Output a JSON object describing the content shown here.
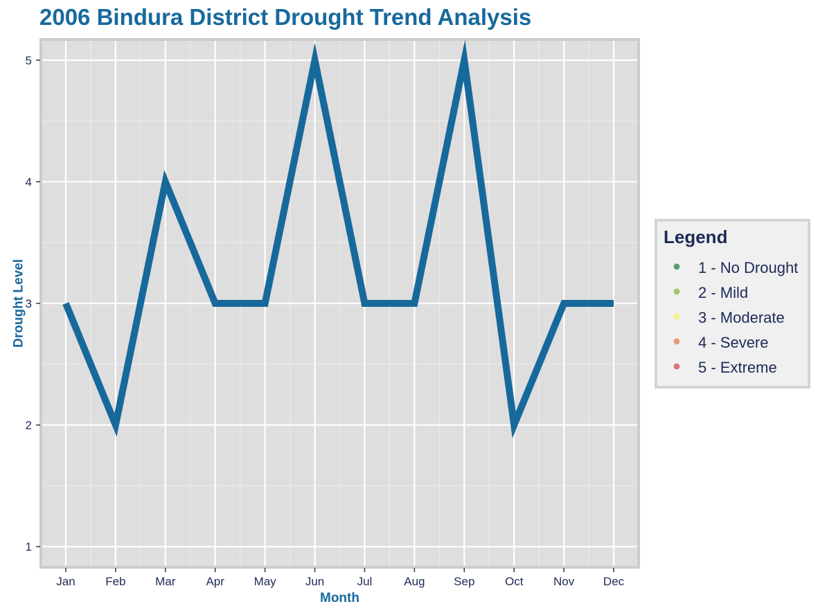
{
  "colors": {
    "title": "#17699c",
    "axis_title": "#17699c",
    "tick_label": "#1d2a57",
    "line": "#17699c",
    "panel_bg": "#dedede",
    "panel_border": "#cccccc",
    "grid_major": "#ffffff",
    "grid_minor": "#ececec",
    "legend_bg": "#f0f0f0",
    "legend_border": "#d4d4d4",
    "legend_title": "#1d2a57",
    "legend_label": "#1d2a57"
  },
  "chart_data": {
    "type": "line",
    "title": "2006 Bindura District Drought Trend Analysis",
    "xlabel": "Month",
    "ylabel": "Drought Level",
    "categories": [
      "Jan",
      "Feb",
      "Mar",
      "Apr",
      "May",
      "Jun",
      "Jul",
      "Aug",
      "Sep",
      "Oct",
      "Nov",
      "Dec"
    ],
    "series": [
      {
        "values": [
          3,
          2,
          4,
          3,
          3,
          5,
          3,
          3,
          5,
          2,
          3,
          3
        ]
      }
    ],
    "ylim": [
      0.83,
      5.17
    ],
    "yticks": [
      1,
      2,
      3,
      4,
      5
    ],
    "grid": true,
    "legend": {
      "title": "Legend",
      "placement": "right",
      "items": [
        {
          "label": "1 - No Drought",
          "color": "#5a9a6e"
        },
        {
          "label": "2 - Mild",
          "color": "#a3c46c"
        },
        {
          "label": "3 - Moderate",
          "color": "#f4f486"
        },
        {
          "label": "4 - Severe",
          "color": "#e6997a"
        },
        {
          "label": "5 - Extreme",
          "color": "#d67478"
        }
      ]
    }
  }
}
